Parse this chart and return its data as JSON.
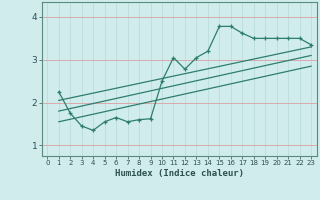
{
  "xlabel": "Humidex (Indice chaleur)",
  "bg_color": "#d0ecec",
  "line_color": "#2e7d6e",
  "grid_color_h": "#daa0a0",
  "grid_color_v": "#b8d8d8",
  "xlim": [
    -0.5,
    23.5
  ],
  "ylim": [
    0.75,
    4.35
  ],
  "yticks": [
    1,
    2,
    3,
    4
  ],
  "xticks": [
    0,
    1,
    2,
    3,
    4,
    5,
    6,
    7,
    8,
    9,
    10,
    11,
    12,
    13,
    14,
    15,
    16,
    17,
    18,
    19,
    20,
    21,
    22,
    23
  ],
  "series1_x": [
    1,
    2,
    3,
    4,
    5,
    6,
    7,
    8,
    9,
    10,
    11,
    12,
    13,
    14,
    15,
    16,
    17,
    18,
    19,
    20,
    21,
    22,
    23
  ],
  "series1_y": [
    2.25,
    1.75,
    1.45,
    1.35,
    1.55,
    1.65,
    1.55,
    1.6,
    1.62,
    2.5,
    3.05,
    2.78,
    3.05,
    3.2,
    3.78,
    3.78,
    3.62,
    3.5,
    3.5,
    3.5,
    3.5,
    3.5,
    3.35
  ],
  "line1_x": [
    1,
    23
  ],
  "line1_y": [
    2.05,
    3.3
  ],
  "line2_x": [
    1,
    23
  ],
  "line2_y": [
    1.8,
    3.1
  ],
  "line3_x": [
    1,
    23
  ],
  "line3_y": [
    1.55,
    2.85
  ]
}
